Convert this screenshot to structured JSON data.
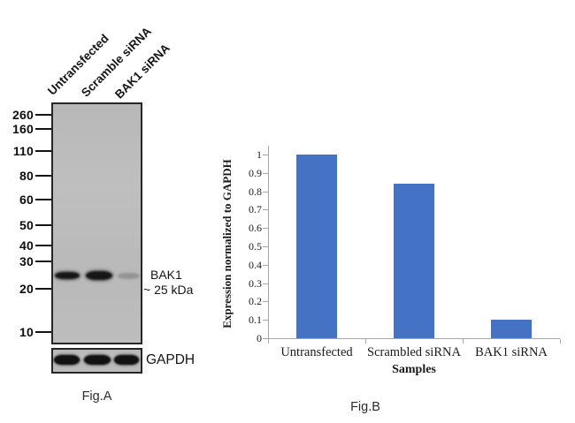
{
  "figure_a": {
    "caption": "Fig.A",
    "lane_labels": [
      "Untransfected",
      "Scramble siRNA",
      "BAK1 siRNA"
    ],
    "mw_markers": [
      "260",
      "160",
      "110",
      "80",
      "60",
      "50",
      "40",
      "30",
      "20",
      "10"
    ],
    "target_band": {
      "label": "BAK1",
      "size_label": "~ 25 kDa",
      "lane_intensities": [
        "strong",
        "strong",
        "faint"
      ]
    },
    "loading_control": {
      "label": "GAPDH",
      "lane_intensities": [
        "strong",
        "strong",
        "strong"
      ]
    }
  },
  "figure_b": {
    "caption": "Fig.B"
  },
  "chart_data": {
    "type": "bar",
    "categories": [
      "Untransfected",
      "Scrambled siRNA",
      "BAK1 siRNA"
    ],
    "values": [
      1.0,
      0.84,
      0.1
    ],
    "title": "",
    "xlabel": "Samples",
    "ylabel": "Expression normalized to GAPDH",
    "ylim": [
      0,
      1
    ],
    "yticks": [
      0,
      0.1,
      0.2,
      0.3,
      0.4,
      0.5,
      0.6,
      0.7,
      0.8,
      0.9,
      1
    ],
    "bar_color": "#4472C4",
    "axis_color": "#a6a6a6",
    "grid": false,
    "legend": false
  }
}
